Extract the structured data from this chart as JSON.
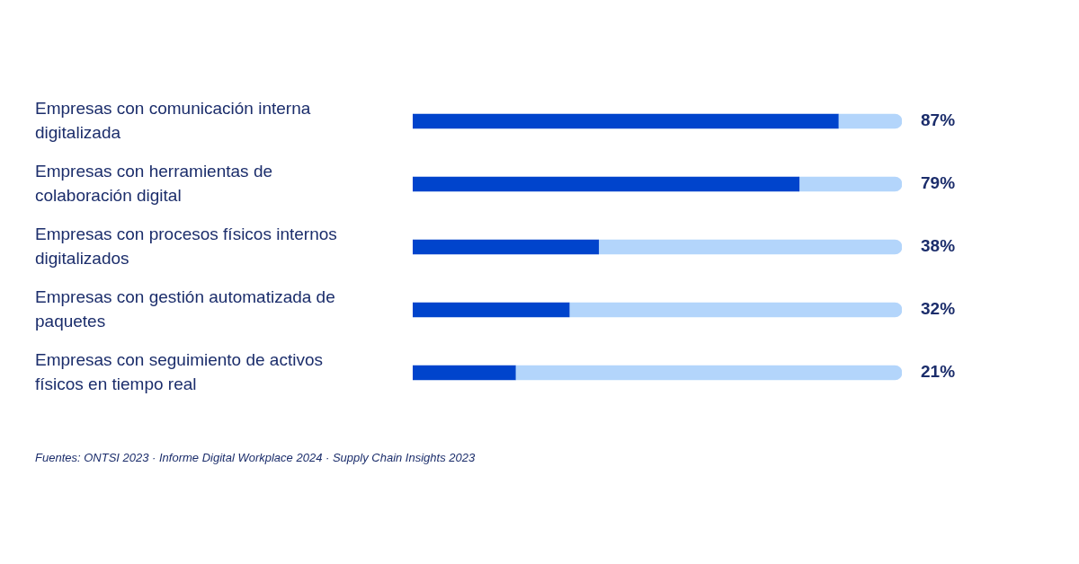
{
  "chart_data": {
    "type": "bar",
    "orientation": "horizontal",
    "stacked": true,
    "categories": [
      "Empresas con comunicación interna digitalizada",
      "Empresas con herramientas de colaboración digital",
      "Empresas con procesos físicos internos digitalizados",
      "Empresas con gestión automatizada de paquetes",
      "Empresas con seguimiento de activos físicos en tiempo real"
    ],
    "series": [
      {
        "color": "#0044cc",
        "values": [
          87,
          79,
          38,
          32,
          21
        ],
        "value_labels": [
          "87%",
          "79%",
          "38%",
          "32%",
          "21%"
        ]
      },
      {
        "color": "#b3d5fb",
        "values": [
          13,
          21,
          62,
          68,
          79
        ]
      }
    ],
    "xlim": [
      0,
      100
    ],
    "legend": false,
    "annotations": [
      "Fuentes: ONTSI 2023 · Informe Digital Workplace 2024 · Supply Chain Insights 2023"
    ]
  }
}
